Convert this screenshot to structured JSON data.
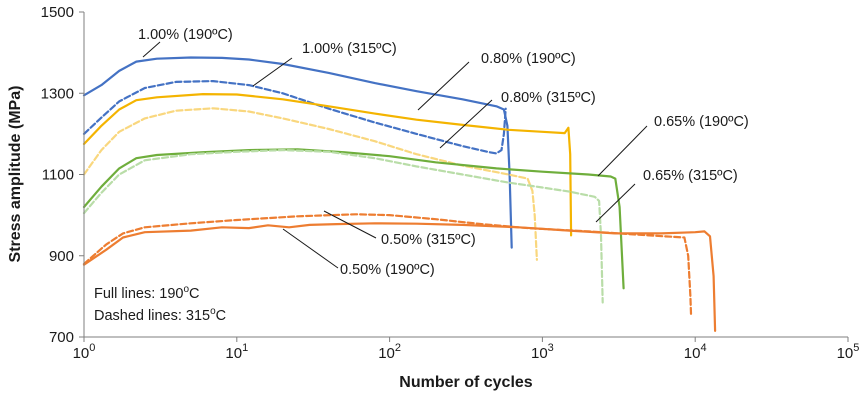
{
  "chart_data": {
    "type": "line",
    "xlabel": "Number of cycles",
    "ylabel": "Stress amplitude (MPa)",
    "xscale": "log",
    "xlim": [
      1,
      100000
    ],
    "ylim": [
      700,
      1500
    ],
    "x_ticks": [
      {
        "value": 1,
        "base": "10",
        "exp": "0"
      },
      {
        "value": 10,
        "base": "10",
        "exp": "1"
      },
      {
        "value": 100,
        "base": "10",
        "exp": "2"
      },
      {
        "value": 1000,
        "base": "10",
        "exp": "3"
      },
      {
        "value": 10000,
        "base": "10",
        "exp": "4"
      },
      {
        "value": 100000,
        "base": "10",
        "exp": "5"
      }
    ],
    "y_ticks": [
      700,
      900,
      1100,
      1300,
      1500
    ],
    "grid": false,
    "notes": {
      "full": {
        "prefix": "Full lines: 190",
        "sup": "o",
        "suffix": "C"
      },
      "dashed": {
        "prefix": "Dashed lines: 315",
        "sup": "o",
        "suffix": "C"
      }
    },
    "series": [
      {
        "name": "1.00% (190ºC)",
        "color": "#4472C4",
        "dash": false,
        "points": [
          [
            1,
            1295
          ],
          [
            1.3,
            1320
          ],
          [
            1.7,
            1355
          ],
          [
            2.2,
            1378
          ],
          [
            3,
            1385
          ],
          [
            5,
            1388
          ],
          [
            8,
            1387
          ],
          [
            12,
            1383
          ],
          [
            20,
            1372
          ],
          [
            40,
            1350
          ],
          [
            80,
            1325
          ],
          [
            150,
            1305
          ],
          [
            300,
            1285
          ],
          [
            500,
            1268
          ],
          [
            560,
            1260
          ],
          [
            590,
            1220
          ],
          [
            610,
            1100
          ],
          [
            630,
            920
          ]
        ]
      },
      {
        "name": "1.00% (315ºC)",
        "color": "#4472C4",
        "dash": true,
        "points": [
          [
            1,
            1200
          ],
          [
            1.3,
            1240
          ],
          [
            1.7,
            1280
          ],
          [
            2.5,
            1313
          ],
          [
            4,
            1328
          ],
          [
            7,
            1330
          ],
          [
            12,
            1320
          ],
          [
            20,
            1300
          ],
          [
            40,
            1262
          ],
          [
            80,
            1228
          ],
          [
            150,
            1200
          ],
          [
            300,
            1170
          ],
          [
            450,
            1155
          ],
          [
            500,
            1152
          ],
          [
            540,
            1160
          ],
          [
            560,
            1200
          ],
          [
            575,
            1262
          ]
        ]
      },
      {
        "name": "0.80% (190ºC)",
        "color": "#F4B400",
        "dash": false,
        "points": [
          [
            1,
            1175
          ],
          [
            1.3,
            1220
          ],
          [
            1.7,
            1260
          ],
          [
            2.2,
            1283
          ],
          [
            3,
            1290
          ],
          [
            6,
            1298
          ],
          [
            10,
            1297
          ],
          [
            20,
            1285
          ],
          [
            40,
            1268
          ],
          [
            80,
            1250
          ],
          [
            150,
            1235
          ],
          [
            300,
            1222
          ],
          [
            600,
            1210
          ],
          [
            1000,
            1205
          ],
          [
            1400,
            1202
          ],
          [
            1480,
            1215
          ],
          [
            1520,
            1150
          ],
          [
            1540,
            950
          ]
        ]
      },
      {
        "name": "0.80% (315ºC)",
        "color": "#F9D77E",
        "dash": true,
        "points": [
          [
            1,
            1100
          ],
          [
            1.3,
            1160
          ],
          [
            1.7,
            1205
          ],
          [
            2.5,
            1238
          ],
          [
            4,
            1257
          ],
          [
            7,
            1263
          ],
          [
            12,
            1255
          ],
          [
            20,
            1238
          ],
          [
            40,
            1212
          ],
          [
            80,
            1182
          ],
          [
            150,
            1150
          ],
          [
            300,
            1122
          ],
          [
            600,
            1100
          ],
          [
            800,
            1090
          ],
          [
            860,
            1060
          ],
          [
            890,
            1000
          ],
          [
            920,
            890
          ]
        ]
      },
      {
        "name": "0.65% (190ºC)",
        "color": "#6FAE3C",
        "dash": false,
        "points": [
          [
            1,
            1020
          ],
          [
            1.3,
            1070
          ],
          [
            1.7,
            1115
          ],
          [
            2.2,
            1140
          ],
          [
            3,
            1148
          ],
          [
            6,
            1155
          ],
          [
            12,
            1160
          ],
          [
            25,
            1162
          ],
          [
            50,
            1155
          ],
          [
            100,
            1145
          ],
          [
            200,
            1130
          ],
          [
            500,
            1115
          ],
          [
            1000,
            1107
          ],
          [
            2000,
            1100
          ],
          [
            2800,
            1095
          ],
          [
            3000,
            1090
          ],
          [
            3200,
            1020
          ],
          [
            3400,
            820
          ]
        ]
      },
      {
        "name": "0.65% (315ºC)",
        "color": "#B9DDA8",
        "dash": true,
        "points": [
          [
            1,
            1005
          ],
          [
            1.3,
            1055
          ],
          [
            1.7,
            1100
          ],
          [
            2.5,
            1135
          ],
          [
            5,
            1150
          ],
          [
            10,
            1156
          ],
          [
            20,
            1160
          ],
          [
            40,
            1156
          ],
          [
            80,
            1140
          ],
          [
            150,
            1120
          ],
          [
            300,
            1100
          ],
          [
            600,
            1080
          ],
          [
            1000,
            1068
          ],
          [
            1500,
            1058
          ],
          [
            2200,
            1045
          ],
          [
            2350,
            1035
          ],
          [
            2420,
            950
          ],
          [
            2480,
            785
          ]
        ]
      },
      {
        "name": "0.50% (190ºC)",
        "color": "#ED7D31",
        "dash": false,
        "points": [
          [
            1,
            878
          ],
          [
            1.4,
            915
          ],
          [
            1.8,
            945
          ],
          [
            2.5,
            958
          ],
          [
            5,
            962
          ],
          [
            8,
            970
          ],
          [
            12,
            968
          ],
          [
            16,
            975
          ],
          [
            22,
            970
          ],
          [
            30,
            976
          ],
          [
            45,
            978
          ],
          [
            80,
            980
          ],
          [
            150,
            979
          ],
          [
            300,
            976
          ],
          [
            700,
            970
          ],
          [
            1500,
            962
          ],
          [
            3000,
            955
          ],
          [
            6000,
            955
          ],
          [
            10000,
            958
          ],
          [
            11500,
            960
          ],
          [
            12500,
            948
          ],
          [
            13200,
            850
          ],
          [
            13500,
            715
          ]
        ]
      },
      {
        "name": "0.50% (315ºC)",
        "color": "#ED7D31",
        "dash": true,
        "points": [
          [
            1,
            880
          ],
          [
            1.4,
            928
          ],
          [
            1.8,
            955
          ],
          [
            2.5,
            970
          ],
          [
            5,
            980
          ],
          [
            10,
            988
          ],
          [
            25,
            997
          ],
          [
            60,
            1002
          ],
          [
            100,
            1000
          ],
          [
            200,
            990
          ],
          [
            400,
            978
          ],
          [
            800,
            968
          ],
          [
            2000,
            960
          ],
          [
            5000,
            950
          ],
          [
            8500,
            945
          ],
          [
            9000,
            900
          ],
          [
            9300,
            800
          ],
          [
            9400,
            750
          ]
        ]
      }
    ],
    "annotations": [
      {
        "text": "1.00% (190ºC)"
      },
      {
        "text": "1.00% (315ºC)"
      },
      {
        "text": "0.80% (190ºC)"
      },
      {
        "text": "0.80% (315ºC)"
      },
      {
        "text": "0.65% (190ºC)"
      },
      {
        "text": "0.65% (315ºC)"
      },
      {
        "text": "0.50% (315ºC)"
      },
      {
        "text": "0.50% (190ºC)"
      }
    ]
  }
}
